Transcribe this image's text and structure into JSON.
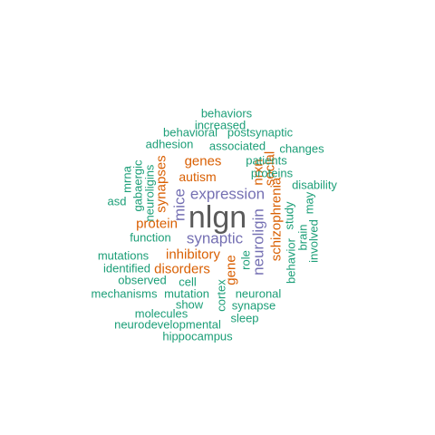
{
  "colors": {
    "teal": "#1b9e77",
    "orange": "#d95f02",
    "purple": "#7570b3",
    "gray": "#5a5a5a"
  },
  "words": [
    {
      "text": "behaviors",
      "color": "teal"
    },
    {
      "text": "increased",
      "color": "teal"
    },
    {
      "text": "behavioral",
      "color": "teal"
    },
    {
      "text": "postsynaptic",
      "color": "teal"
    },
    {
      "text": "adhesion",
      "color": "teal"
    },
    {
      "text": "associated",
      "color": "teal"
    },
    {
      "text": "changes",
      "color": "teal"
    },
    {
      "text": "genes",
      "color": "orange"
    },
    {
      "text": "nrxn",
      "color": "orange"
    },
    {
      "text": "social",
      "color": "orange"
    },
    {
      "text": "patients",
      "color": "teal"
    },
    {
      "text": "autism",
      "color": "orange"
    },
    {
      "text": "proteins",
      "color": "teal"
    },
    {
      "text": "mrna",
      "color": "teal"
    },
    {
      "text": "gabaergic",
      "color": "teal"
    },
    {
      "text": "neuroligins",
      "color": "teal"
    },
    {
      "text": "synapses",
      "color": "orange"
    },
    {
      "text": "disability",
      "color": "teal"
    },
    {
      "text": "expression",
      "color": "purple"
    },
    {
      "text": "asd",
      "color": "teal"
    },
    {
      "text": "mice",
      "color": "purple"
    },
    {
      "text": "nlgn",
      "color": "gray"
    },
    {
      "text": "schizophrenia",
      "color": "orange"
    },
    {
      "text": "study",
      "color": "teal"
    },
    {
      "text": "may",
      "color": "teal"
    },
    {
      "text": "protein",
      "color": "orange"
    },
    {
      "text": "neuroligin",
      "color": "purple"
    },
    {
      "text": "brain",
      "color": "teal"
    },
    {
      "text": "involved",
      "color": "teal"
    },
    {
      "text": "function",
      "color": "teal"
    },
    {
      "text": "synaptic",
      "color": "purple"
    },
    {
      "text": "behavior",
      "color": "teal"
    },
    {
      "text": "inhibitory",
      "color": "orange"
    },
    {
      "text": "role",
      "color": "teal"
    },
    {
      "text": "mutations",
      "color": "teal"
    },
    {
      "text": "gene",
      "color": "orange"
    },
    {
      "text": "identified",
      "color": "teal"
    },
    {
      "text": "disorders",
      "color": "orange"
    },
    {
      "text": "observed",
      "color": "teal"
    },
    {
      "text": "cell",
      "color": "teal"
    },
    {
      "text": "cortex",
      "color": "teal"
    },
    {
      "text": "mechanisms",
      "color": "teal"
    },
    {
      "text": "mutation",
      "color": "teal"
    },
    {
      "text": "neuronal",
      "color": "teal"
    },
    {
      "text": "show",
      "color": "teal"
    },
    {
      "text": "synapse",
      "color": "teal"
    },
    {
      "text": "molecules",
      "color": "teal"
    },
    {
      "text": "sleep",
      "color": "teal"
    },
    {
      "text": "neurodevelopmental",
      "color": "teal"
    },
    {
      "text": "hippocampus",
      "color": "teal"
    }
  ]
}
